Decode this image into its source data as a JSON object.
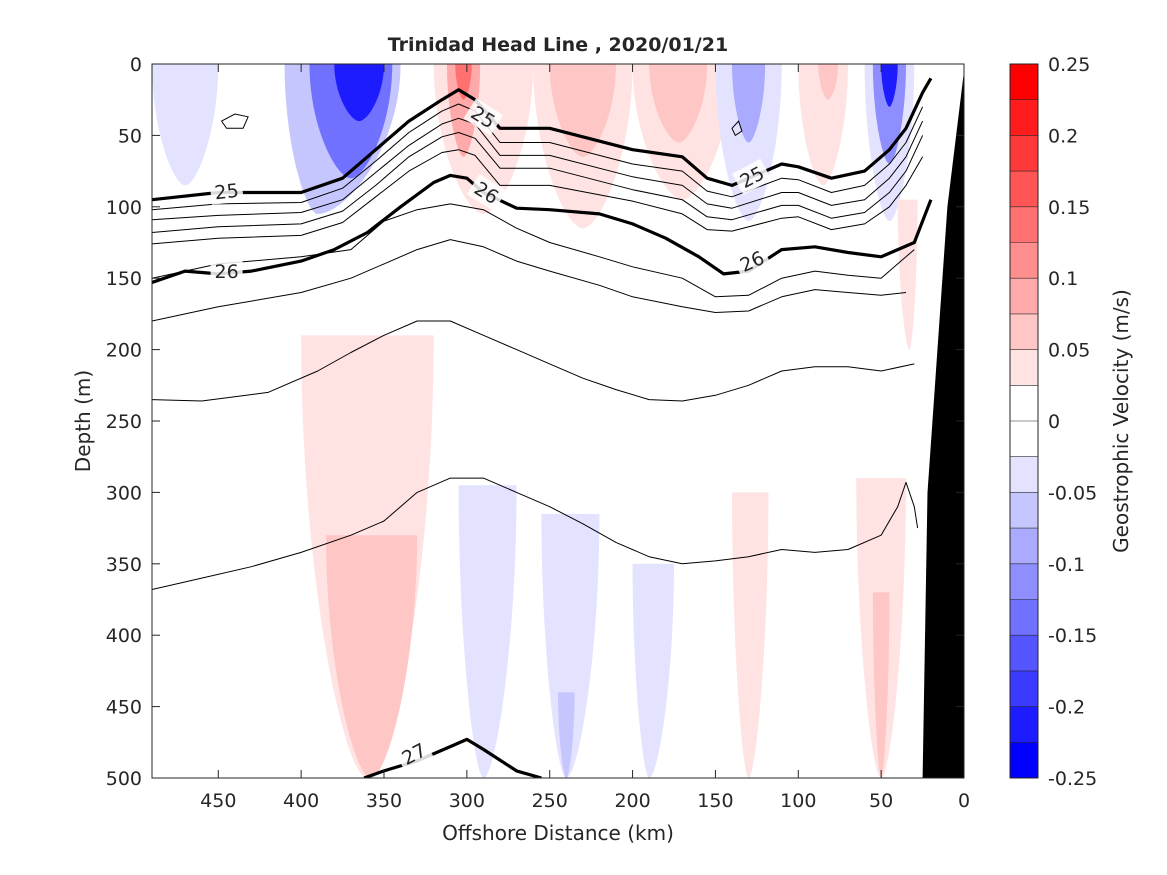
{
  "chart_data": {
    "type": "heatmap",
    "title": "Trinidad Head Line , 2020/01/21",
    "xlabel": "Offshore Distance (km)",
    "ylabel": "Depth (m)",
    "xlim": [
      490,
      0
    ],
    "ylim": [
      0,
      500
    ],
    "x_reversed": true,
    "y_reversed": true,
    "xticks": [
      450,
      400,
      350,
      300,
      250,
      200,
      150,
      100,
      50,
      0
    ],
    "yticks": [
      0,
      50,
      100,
      150,
      200,
      250,
      300,
      350,
      400,
      450,
      500
    ],
    "colorbar": {
      "label": "Geostrophic Velocity (m/s)",
      "range": [
        -0.25,
        0.25
      ],
      "step": 0.025,
      "ticks": [
        "0.25",
        "0.2",
        "0.15",
        "0.1",
        "0.05",
        "0",
        "-0.05",
        "-0.1",
        "-0.15",
        "-0.2",
        "-0.25"
      ],
      "positive_color": "#ff0000",
      "negative_color": "#0000ff",
      "zero_color": "#ffffff"
    },
    "velocity_patches": [
      {
        "x": [
          490,
          470,
          450
        ],
        "dtop": 0,
        "dbot": 85,
        "v": -0.04
      },
      {
        "x": [
          410,
          390,
          340
        ],
        "dtop": 0,
        "dbot": 105,
        "v": -0.075
      },
      {
        "x": [
          395,
          370,
          345
        ],
        "dtop": 0,
        "dbot": 80,
        "v": -0.13
      },
      {
        "x": [
          380,
          365,
          350
        ],
        "dtop": 0,
        "dbot": 40,
        "v": -0.21
      },
      {
        "x": [
          320,
          290,
          260
        ],
        "dtop": 0,
        "dbot": 105,
        "v": 0.04
      },
      {
        "x": [
          312,
          302,
          292
        ],
        "dtop": 0,
        "dbot": 65,
        "v": 0.1
      },
      {
        "x": [
          307,
          302,
          297
        ],
        "dtop": 0,
        "dbot": 25,
        "v": 0.14
      },
      {
        "x": [
          260,
          230,
          200
        ],
        "dtop": 0,
        "dbot": 115,
        "v": 0.04
      },
      {
        "x": [
          250,
          230,
          210
        ],
        "dtop": 0,
        "dbot": 65,
        "v": 0.075
      },
      {
        "x": [
          200,
          170,
          140
        ],
        "dtop": 0,
        "dbot": 95,
        "v": 0.04
      },
      {
        "x": [
          190,
          172,
          155
        ],
        "dtop": 0,
        "dbot": 55,
        "v": 0.075
      },
      {
        "x": [
          150,
          130,
          110
        ],
        "dtop": 0,
        "dbot": 110,
        "v": -0.045
      },
      {
        "x": [
          140,
          130,
          120
        ],
        "dtop": 0,
        "dbot": 55,
        "v": -0.085
      },
      {
        "x": [
          100,
          85,
          70
        ],
        "dtop": 0,
        "dbot": 85,
        "v": 0.035
      },
      {
        "x": [
          88,
          82,
          76
        ],
        "dtop": 0,
        "dbot": 25,
        "v": 0.07
      },
      {
        "x": [
          60,
          45,
          30
        ],
        "dtop": 0,
        "dbot": 110,
        "v": -0.05
      },
      {
        "x": [
          55,
          45,
          35
        ],
        "dtop": 0,
        "dbot": 70,
        "v": -0.12
      },
      {
        "x": [
          50,
          45,
          40
        ],
        "dtop": 0,
        "dbot": 30,
        "v": -0.22
      },
      {
        "x": [
          40,
          33,
          28
        ],
        "dtop": 95,
        "dbot": 200,
        "v": 0.05
      },
      {
        "x": [
          400,
          360,
          320
        ],
        "dtop": 190,
        "dbot": 500,
        "v": 0.04
      },
      {
        "x": [
          385,
          358,
          330
        ],
        "dtop": 330,
        "dbot": 500,
        "v": 0.075
      },
      {
        "x": [
          305,
          290,
          270
        ],
        "dtop": 295,
        "dbot": 500,
        "v": -0.035
      },
      {
        "x": [
          255,
          240,
          220
        ],
        "dtop": 315,
        "dbot": 500,
        "v": -0.035
      },
      {
        "x": [
          245,
          240,
          235
        ],
        "dtop": 440,
        "dbot": 500,
        "v": -0.075
      },
      {
        "x": [
          200,
          190,
          175
        ],
        "dtop": 350,
        "dbot": 500,
        "v": -0.035
      },
      {
        "x": [
          140,
          130,
          118
        ],
        "dtop": 300,
        "dbot": 500,
        "v": 0.04
      },
      {
        "x": [
          65,
          50,
          35
        ],
        "dtop": 290,
        "dbot": 500,
        "v": 0.04
      },
      {
        "x": [
          55,
          50,
          45
        ],
        "dtop": 370,
        "dbot": 500,
        "v": 0.075
      }
    ],
    "isopycnals": [
      {
        "x": [
          490,
          450,
          400,
          375,
          355,
          335,
          315,
          305,
          295,
          280,
          250,
          200,
          170,
          155,
          140,
          110,
          100,
          80,
          60,
          45,
          35,
          25,
          20
        ],
        "depth": [
          95,
          90,
          90,
          80,
          60,
          40,
          25,
          18,
          25,
          45,
          45,
          60,
          65,
          80,
          85,
          70,
          72,
          80,
          75,
          60,
          45,
          20,
          10
        ],
        "bold": true
      },
      {
        "x": [
          490,
          450,
          400,
          375,
          355,
          335,
          315,
          305,
          295,
          280,
          250,
          200,
          170,
          155,
          140,
          110,
          100,
          80,
          60,
          45,
          35,
          25
        ],
        "depth": [
          102,
          98,
          97,
          87,
          68,
          48,
          33,
          28,
          33,
          55,
          55,
          70,
          75,
          89,
          93,
          80,
          81,
          90,
          85,
          70,
          55,
          30
        ],
        "bold": false
      },
      {
        "x": [
          490,
          450,
          400,
          375,
          355,
          335,
          315,
          305,
          295,
          280,
          250,
          200,
          170,
          155,
          140,
          110,
          100,
          80,
          60,
          45,
          35,
          25
        ],
        "depth": [
          109,
          106,
          104,
          95,
          76,
          57,
          42,
          38,
          42,
          64,
          64,
          79,
          85,
          98,
          101,
          90,
          90,
          99,
          95,
          80,
          65,
          40
        ],
        "bold": false
      },
      {
        "x": [
          490,
          450,
          400,
          375,
          355,
          335,
          315,
          305,
          295,
          280,
          250,
          200,
          170,
          155,
          140,
          110,
          100,
          80,
          60,
          45,
          35,
          25
        ],
        "depth": [
          118,
          114,
          112,
          103,
          85,
          65,
          51,
          48,
          52,
          73,
          73,
          88,
          95,
          107,
          109,
          99,
          99,
          108,
          104,
          90,
          75,
          50
        ],
        "bold": false
      },
      {
        "x": [
          490,
          450,
          400,
          375,
          355,
          335,
          315,
          305,
          295,
          280,
          250,
          200,
          170,
          155,
          140,
          110,
          100,
          80,
          60,
          45,
          35,
          25
        ],
        "depth": [
          126,
          122,
          120,
          111,
          93,
          75,
          62,
          60,
          64,
          85,
          85,
          96,
          105,
          116,
          117,
          108,
          107,
          116,
          112,
          100,
          85,
          65
        ],
        "bold": false
      },
      {
        "x": [
          490,
          470,
          450,
          430,
          400,
          380,
          360,
          340,
          320,
          310,
          300,
          290,
          270,
          250,
          220,
          200,
          180,
          160,
          145,
          130,
          110,
          90,
          70,
          50,
          30,
          20
        ],
        "depth": [
          153,
          145,
          147,
          145,
          138,
          130,
          118,
          100,
          83,
          78,
          80,
          90,
          101,
          102,
          105,
          112,
          122,
          135,
          147,
          145,
          130,
          128,
          132,
          135,
          125,
          95
        ],
        "bold": true
      },
      {
        "x": [
          490,
          450,
          400,
          370,
          350,
          330,
          310,
          290,
          270,
          250,
          220,
          200,
          170,
          150,
          130,
          110,
          90,
          70,
          50,
          40,
          30
        ],
        "depth": [
          150,
          140,
          135,
          130,
          110,
          102,
          98,
          102,
          115,
          125,
          135,
          142,
          150,
          163,
          162,
          150,
          145,
          148,
          150,
          140,
          130
        ],
        "bold": false
      },
      {
        "x": [
          490,
          450,
          400,
          370,
          350,
          330,
          310,
          290,
          270,
          250,
          220,
          200,
          170,
          150,
          130,
          110,
          90,
          70,
          50,
          35
        ],
        "depth": [
          180,
          170,
          160,
          150,
          140,
          130,
          123,
          128,
          138,
          145,
          155,
          163,
          170,
          174,
          173,
          163,
          158,
          160,
          162,
          160
        ],
        "bold": false
      },
      {
        "x": [
          490,
          460,
          420,
          390,
          370,
          350,
          330,
          310,
          290,
          270,
          250,
          230,
          210,
          190,
          170,
          150,
          130,
          110,
          90,
          70,
          50,
          30
        ],
        "depth": [
          235,
          236,
          230,
          215,
          202,
          190,
          180,
          180,
          190,
          200,
          210,
          220,
          228,
          235,
          236,
          232,
          225,
          215,
          212,
          212,
          215,
          210
        ],
        "bold": false
      },
      {
        "x": [
          490,
          460,
          430,
          400,
          370,
          350,
          330,
          310,
          290,
          270,
          250,
          230,
          210,
          190,
          170,
          150,
          130,
          110,
          90,
          70,
          50,
          40,
          35,
          30,
          28
        ],
        "depth": [
          368,
          360,
          352,
          342,
          330,
          320,
          300,
          290,
          290,
          300,
          310,
          322,
          335,
          345,
          350,
          348,
          345,
          340,
          342,
          340,
          330,
          310,
          293,
          310,
          325
        ],
        "bold": false
      },
      {
        "x": [
          362,
          350,
          330,
          310,
          300,
          290,
          270,
          255
        ],
        "depth": [
          500,
          495,
          488,
          478,
          473,
          480,
          495,
          500
        ],
        "bold": true
      }
    ],
    "small_contours": [
      {
        "x": [
          448,
          440,
          432,
          435,
          445,
          448
        ],
        "depth": [
          40,
          35,
          37,
          45,
          45,
          40
        ]
      },
      {
        "x": [
          140,
          136,
          134,
          138,
          140
        ],
        "depth": [
          45,
          40,
          47,
          50,
          45
        ]
      }
    ],
    "contour_labels": [
      {
        "text": "25",
        "x": 290,
        "depth": 37,
        "angle": 32
      },
      {
        "text": "25",
        "x": 445,
        "depth": 89,
        "angle": -6
      },
      {
        "text": "25",
        "x": 128,
        "depth": 79,
        "angle": -28
      },
      {
        "text": "26",
        "x": 288,
        "depth": 90,
        "angle": 32
      },
      {
        "text": "26",
        "x": 445,
        "depth": 145,
        "angle": 0
      },
      {
        "text": "26",
        "x": 128,
        "depth": 138,
        "angle": -24
      },
      {
        "text": "27",
        "x": 332,
        "depth": 483,
        "angle": -28
      }
    ],
    "bathymetry": {
      "x": [
        25,
        22,
        10,
        0,
        0
      ],
      "depth": [
        500,
        300,
        100,
        5,
        500
      ],
      "color": "#000000"
    }
  }
}
